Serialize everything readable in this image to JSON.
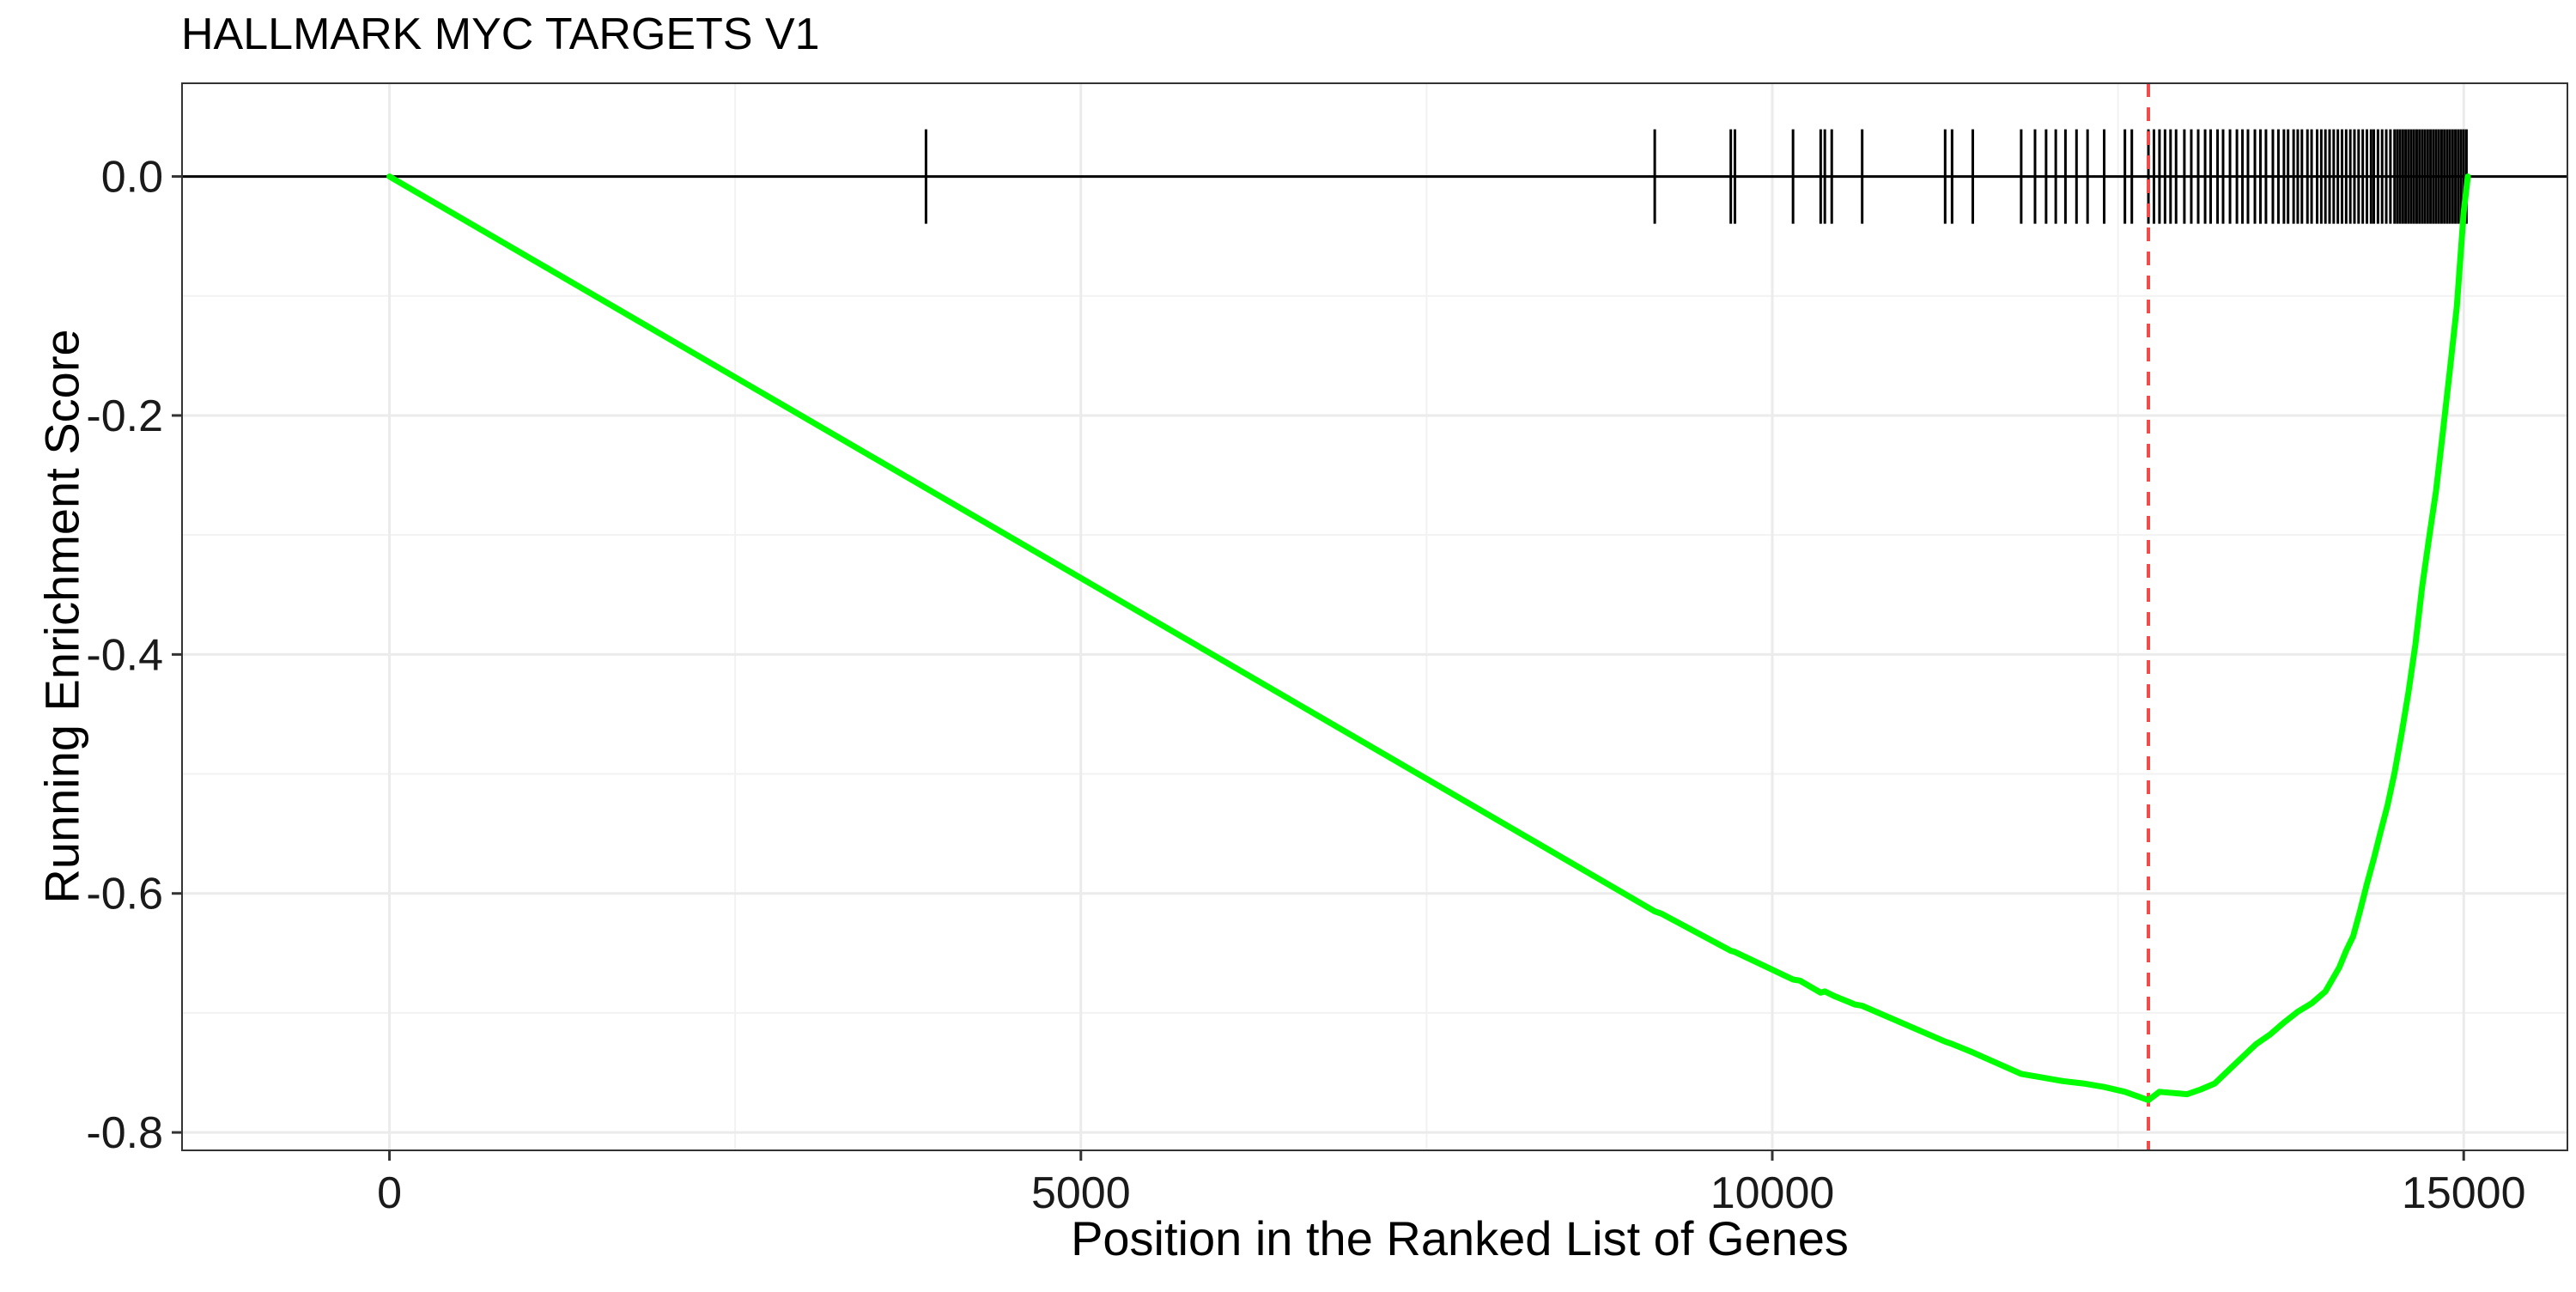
{
  "chart_data": {
    "type": "line",
    "title": "HALLMARK MYC TARGETS V1",
    "xlabel": "Position in the Ranked List of Genes",
    "ylabel": "Running Enrichment Score",
    "xlim": [
      -1500,
      15750
    ],
    "ylim": [
      -0.815,
      0.078
    ],
    "x_ticks": [
      0,
      5000,
      10000,
      15000
    ],
    "x_tick_labels": [
      "0",
      "5000",
      "10000",
      "15000"
    ],
    "y_ticks": [
      0.0,
      -0.2,
      -0.4,
      -0.6,
      -0.8
    ],
    "y_tick_labels": [
      "0.0",
      "-0.2",
      "-0.4",
      "-0.6",
      "-0.8"
    ],
    "grid": true,
    "max_deviation_position": 12720,
    "series": [
      {
        "color": "#00ff00",
        "x": [
          0,
          9150,
          9200,
          9700,
          9730,
          10150,
          10200,
          10350,
          10380,
          10450,
          10600,
          10650,
          11250,
          11300,
          11450,
          11800,
          11950,
          12100,
          12250,
          12400,
          12550,
          12720,
          12800,
          12900,
          13000,
          13100,
          13200,
          13300,
          13400,
          13500,
          13600,
          13700,
          13800,
          13900,
          14000,
          14050,
          14100,
          14150,
          14200,
          14250,
          14300,
          14350,
          14400,
          14450,
          14500,
          14550,
          14600,
          14650,
          14700,
          14750,
          14800,
          14850,
          14900,
          14950,
          15000,
          15030
        ],
        "y": [
          0.0,
          -0.615,
          -0.617,
          -0.648,
          -0.649,
          -0.672,
          -0.673,
          -0.683,
          -0.682,
          -0.686,
          -0.693,
          -0.694,
          -0.724,
          -0.726,
          -0.733,
          -0.751,
          -0.754,
          -0.757,
          -0.759,
          -0.762,
          -0.766,
          -0.773,
          -0.766,
          -0.767,
          -0.768,
          -0.764,
          -0.759,
          -0.748,
          -0.737,
          -0.726,
          -0.718,
          -0.708,
          -0.699,
          -0.692,
          -0.682,
          -0.672,
          -0.662,
          -0.648,
          -0.636,
          -0.615,
          -0.592,
          -0.571,
          -0.548,
          -0.526,
          -0.499,
          -0.467,
          -0.432,
          -0.392,
          -0.343,
          -0.302,
          -0.263,
          -0.213,
          -0.162,
          -0.109,
          -0.03,
          0.0
        ]
      }
    ],
    "hit_positions": [
      3880,
      9150,
      9700,
      9730,
      10150,
      10350,
      10380,
      10430,
      10650,
      11250,
      11300,
      11450,
      11800,
      11900,
      11980,
      12050,
      12120,
      12200,
      12280,
      12400,
      12550,
      12600,
      12720,
      12760,
      12800,
      12840,
      12880,
      12920,
      12980,
      13030,
      13080,
      13130,
      13170,
      13220,
      13260,
      13310,
      13360,
      13400,
      13440,
      13490,
      13530,
      13570,
      13620,
      13660,
      13700,
      13730,
      13770,
      13800,
      13830,
      13870,
      13900,
      13940,
      13970,
      14000,
      14030,
      14060,
      14090,
      14120,
      14150,
      14180,
      14210,
      14240,
      14270,
      14300,
      14330,
      14350,
      14380,
      14410,
      14440,
      14470,
      14500,
      14520,
      14540,
      14560,
      14580,
      14600,
      14620,
      14640,
      14660,
      14680,
      14700,
      14720,
      14740,
      14760,
      14780,
      14800,
      14820,
      14840,
      14860,
      14880,
      14900,
      14920,
      14940,
      14960,
      14980,
      15000,
      15020
    ]
  }
}
